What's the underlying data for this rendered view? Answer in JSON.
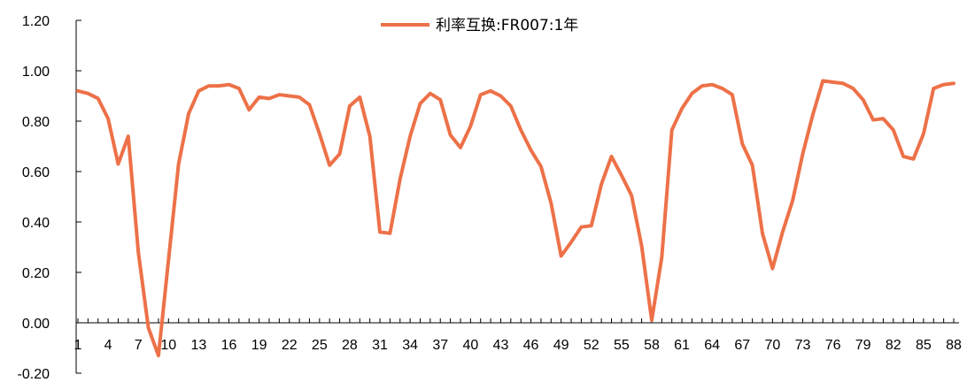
{
  "chart_data": {
    "type": "line",
    "x_start": 1,
    "x_end": 88,
    "x_tick_labels": [
      "1",
      "4",
      "7",
      "10",
      "13",
      "16",
      "19",
      "22",
      "25",
      "28",
      "31",
      "34",
      "37",
      "40",
      "43",
      "46",
      "49",
      "52",
      "55",
      "58",
      "61",
      "64",
      "67",
      "70",
      "73",
      "76",
      "79",
      "82",
      "85",
      "88"
    ],
    "y_tick_labels": [
      "1.20",
      "1.00",
      "0.80",
      "0.60",
      "0.40",
      "0.20",
      "0.00",
      "-0.20"
    ],
    "ylim": [
      -0.2,
      1.2
    ],
    "grid": false,
    "legend_position": "top-center",
    "series": [
      {
        "name": "利率互换:FR007:1年",
        "color": "#ED7148",
        "values": [
          0.92,
          0.91,
          0.89,
          0.81,
          0.63,
          0.74,
          0.28,
          -0.02,
          -0.13,
          0.25,
          0.63,
          0.83,
          0.92,
          0.94,
          0.94,
          0.945,
          0.93,
          0.845,
          0.895,
          0.89,
          0.905,
          0.9,
          0.895,
          0.865,
          0.75,
          0.625,
          0.67,
          0.86,
          0.895,
          0.74,
          0.36,
          0.355,
          0.57,
          0.74,
          0.87,
          0.91,
          0.885,
          0.745,
          0.695,
          0.78,
          0.905,
          0.92,
          0.9,
          0.86,
          0.765,
          0.685,
          0.62,
          0.475,
          0.265,
          0.32,
          0.38,
          0.385,
          0.55,
          0.66,
          0.585,
          0.505,
          0.305,
          0.01,
          0.26,
          0.765,
          0.85,
          0.91,
          0.94,
          0.945,
          0.93,
          0.905,
          0.71,
          0.625,
          0.355,
          0.215,
          0.36,
          0.485,
          0.67,
          0.825,
          0.96,
          0.955,
          0.95,
          0.93,
          0.885,
          0.805,
          0.81,
          0.765,
          0.66,
          0.65,
          0.75,
          0.93,
          0.945,
          0.95
        ]
      }
    ]
  }
}
